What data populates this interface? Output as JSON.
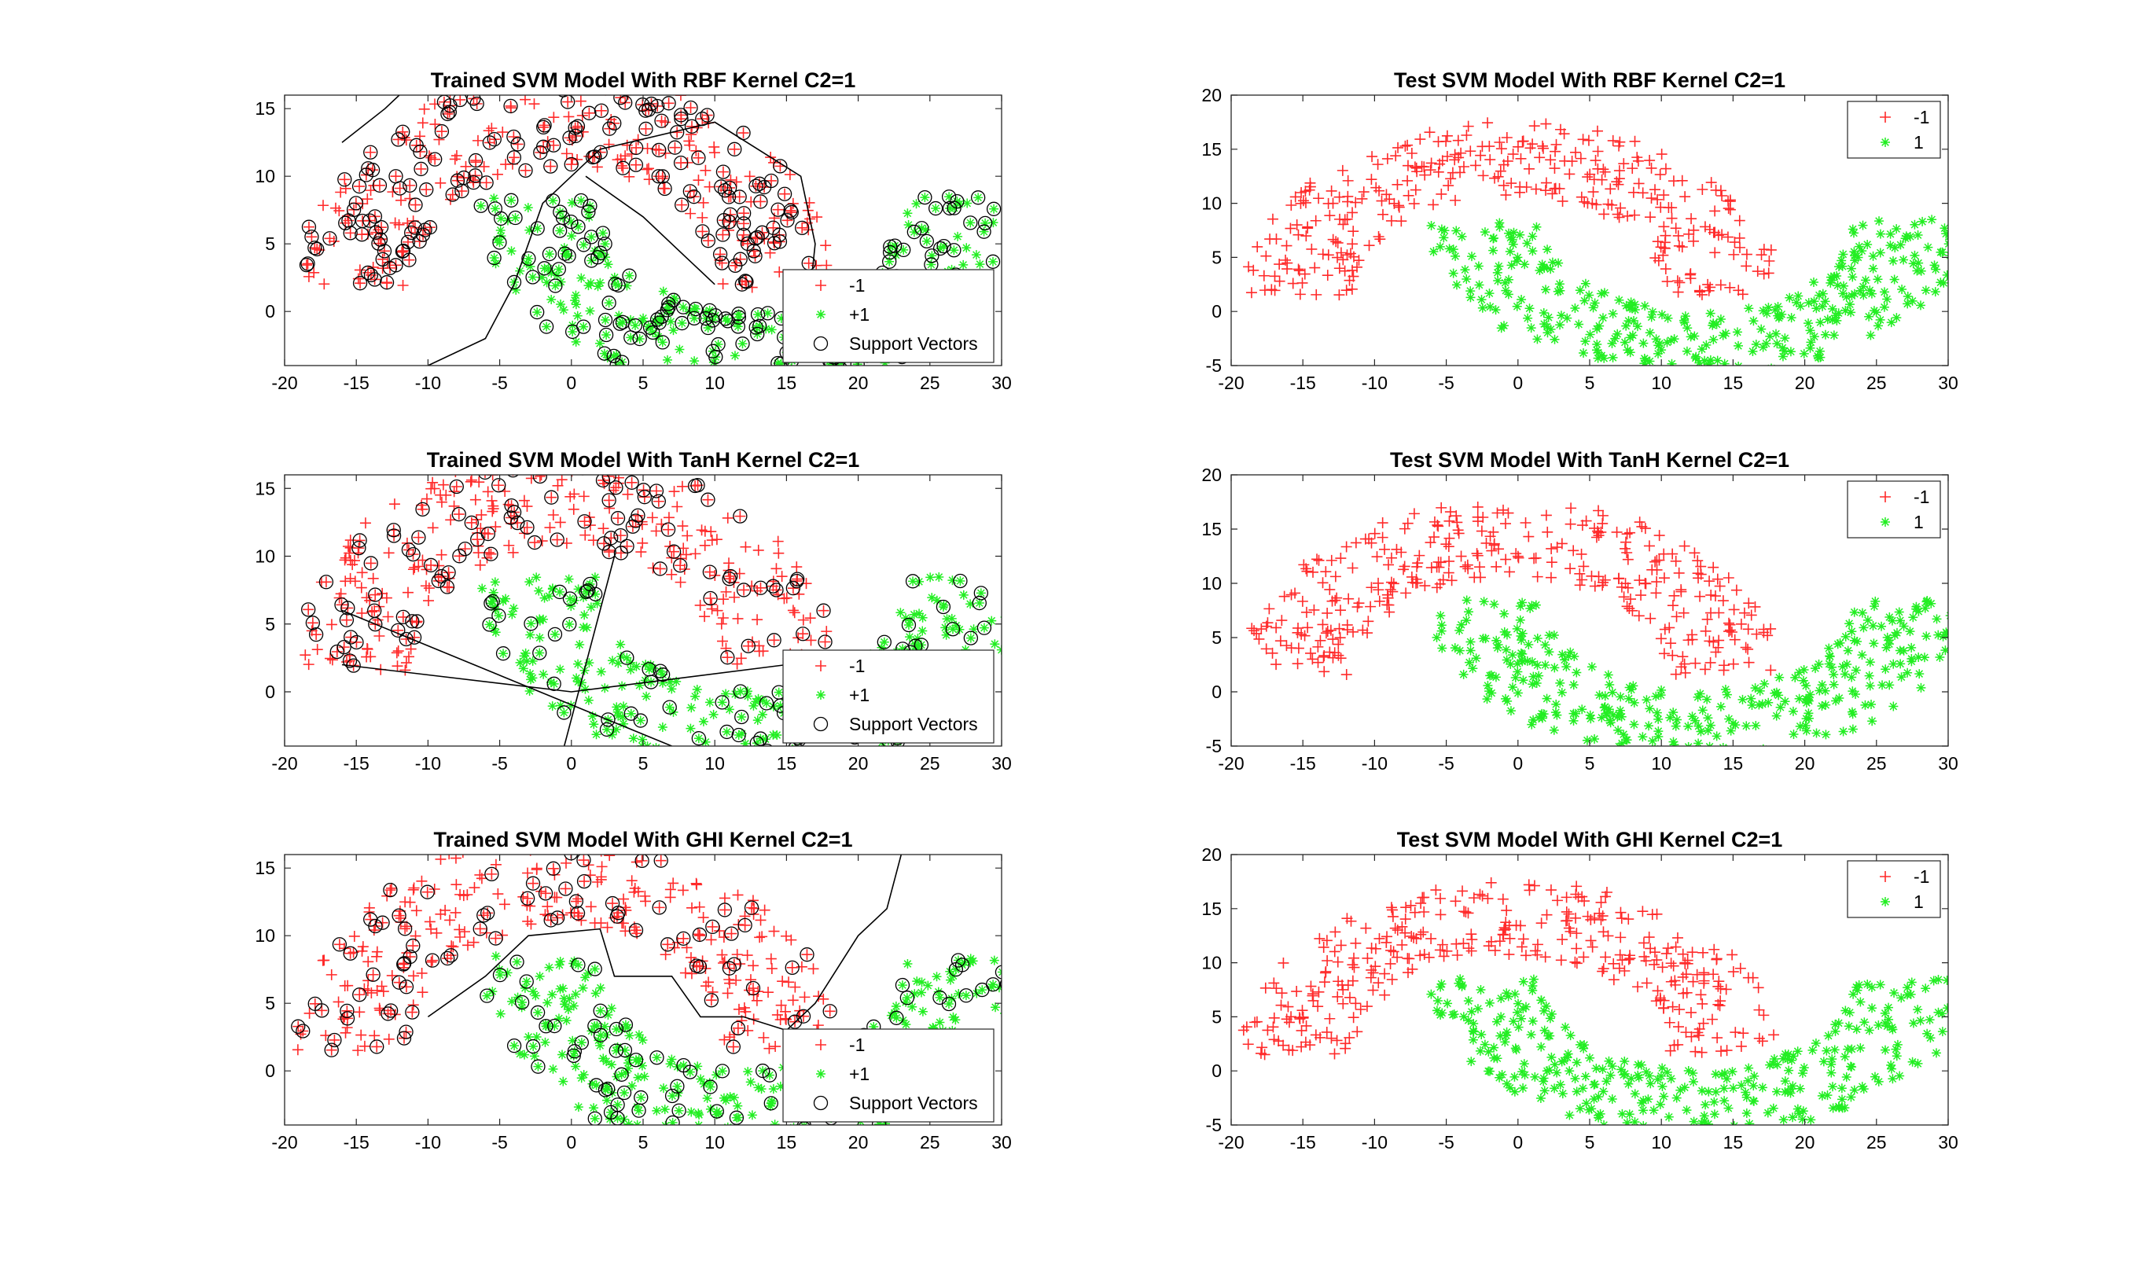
{
  "colors": {
    "neg": "#ff2a2a",
    "pos": "#22ee22",
    "sv": "#000000",
    "boundary": "#000000"
  },
  "chart_data": [
    {
      "type": "scatter",
      "title": "Trained SVM Model With RBF Kernel C2=1",
      "xlim": [
        -20,
        30
      ],
      "ylim": [
        -4,
        16
      ],
      "xticks": [
        "-20",
        "-15",
        "-10",
        "-5",
        "0",
        "5",
        "10",
        "15",
        "20",
        "25",
        "30"
      ],
      "yticks": [
        "0",
        "5",
        "10",
        "15"
      ],
      "legend": [
        "-1",
        "+1",
        "Support Vectors"
      ],
      "legend_position": "bottom-right",
      "series": [
        {
          "name": "-1",
          "marker": "plus",
          "region": "upper_moon"
        },
        {
          "name": "+1",
          "marker": "asterisk",
          "region": "lower_moon"
        },
        {
          "name": "Support Vectors",
          "marker": "circle",
          "region": "mixed"
        }
      ],
      "decision_boundary": [
        [
          -16,
          12.5
        ],
        [
          -13,
          15
        ],
        [
          -12,
          16
        ]
      ],
      "decision_boundary_2": [
        [
          -10,
          -4
        ],
        [
          -6,
          -2
        ],
        [
          -4,
          2
        ],
        [
          -2,
          8
        ],
        [
          2,
          12
        ],
        [
          10,
          14
        ],
        [
          16,
          10
        ],
        [
          17,
          5
        ],
        [
          16.5,
          0
        ]
      ],
      "decision_boundary_3": [
        [
          1,
          10
        ],
        [
          5,
          7
        ],
        [
          8,
          4
        ],
        [
          10,
          2
        ]
      ]
    },
    {
      "type": "scatter",
      "title": "Test SVM Model With RBF Kernel C2=1",
      "xlim": [
        -20,
        30
      ],
      "ylim": [
        -5,
        20
      ],
      "xticks": [
        "-20",
        "-15",
        "-10",
        "-5",
        "0",
        "5",
        "10",
        "15",
        "20",
        "25",
        "30"
      ],
      "yticks": [
        "-5",
        "0",
        "5",
        "10",
        "15",
        "20"
      ],
      "legend": [
        "-1",
        "1"
      ],
      "legend_position": "top-right",
      "series": [
        {
          "name": "-1",
          "marker": "plus",
          "region": "upper_moon"
        },
        {
          "name": "1",
          "marker": "asterisk",
          "region": "lower_moon"
        }
      ]
    },
    {
      "type": "scatter",
      "title": "Trained SVM Model With TanH Kernel C2=1",
      "xlim": [
        -20,
        30
      ],
      "ylim": [
        -4,
        16
      ],
      "xticks": [
        "-20",
        "-15",
        "-10",
        "-5",
        "0",
        "5",
        "10",
        "15",
        "20",
        "25",
        "30"
      ],
      "yticks": [
        "0",
        "5",
        "10",
        "15"
      ],
      "legend": [
        "-1",
        "+1",
        "Support Vectors"
      ],
      "legend_position": "bottom-right",
      "series": [
        {
          "name": "-1",
          "marker": "plus",
          "region": "upper_moon"
        },
        {
          "name": "+1",
          "marker": "asterisk",
          "region": "lower_moon"
        },
        {
          "name": "Support Vectors",
          "marker": "circle",
          "region": "mixed"
        }
      ],
      "decision_boundary": [
        [
          -16,
          6
        ],
        [
          7,
          -4
        ]
      ],
      "decision_boundary_2": [
        [
          -16,
          2
        ],
        [
          0,
          0
        ],
        [
          15,
          2
        ],
        [
          29,
          3
        ]
      ],
      "decision_boundary_3": [
        [
          -0.5,
          -4
        ],
        [
          3,
          10
        ]
      ]
    },
    {
      "type": "scatter",
      "title": "Test SVM Model With TanH Kernel C2=1",
      "xlim": [
        -20,
        30
      ],
      "ylim": [
        -5,
        20
      ],
      "xticks": [
        "-20",
        "-15",
        "-10",
        "-5",
        "0",
        "5",
        "10",
        "15",
        "20",
        "25",
        "30"
      ],
      "yticks": [
        "-5",
        "0",
        "5",
        "10",
        "15",
        "20"
      ],
      "legend": [
        "-1",
        "1"
      ],
      "legend_position": "top-right",
      "series": [
        {
          "name": "-1",
          "marker": "plus",
          "region": "mixed"
        },
        {
          "name": "1",
          "marker": "asterisk",
          "region": "mixed"
        }
      ]
    },
    {
      "type": "scatter",
      "title": "Trained SVM Model With GHI Kernel C2=1",
      "xlim": [
        -20,
        30
      ],
      "ylim": [
        -4,
        16
      ],
      "xticks": [
        "-20",
        "-15",
        "-10",
        "-5",
        "0",
        "5",
        "10",
        "15",
        "20",
        "25",
        "30"
      ],
      "yticks": [
        "0",
        "5",
        "10",
        "15"
      ],
      "legend": [
        "-1",
        "+1",
        "Support Vectors"
      ],
      "legend_position": "bottom-right",
      "series": [
        {
          "name": "-1",
          "marker": "plus",
          "region": "upper_moon"
        },
        {
          "name": "+1",
          "marker": "asterisk",
          "region": "lower_moon"
        },
        {
          "name": "Support Vectors",
          "marker": "circle",
          "region": "mixed"
        }
      ],
      "decision_boundary": [
        [
          -10,
          4
        ],
        [
          -6,
          7
        ],
        [
          -3,
          10
        ],
        [
          2,
          10.5
        ],
        [
          3,
          7
        ],
        [
          7,
          7
        ],
        [
          9,
          4
        ],
        [
          12,
          4
        ],
        [
          15,
          3
        ],
        [
          17,
          5
        ],
        [
          20,
          10
        ],
        [
          22,
          12
        ],
        [
          23,
          16
        ]
      ]
    },
    {
      "type": "scatter",
      "title": "Test SVM Model With GHI Kernel C2=1",
      "xlim": [
        -20,
        30
      ],
      "ylim": [
        -5,
        20
      ],
      "xticks": [
        "-20",
        "-15",
        "-10",
        "-5",
        "0",
        "5",
        "10",
        "15",
        "20",
        "25",
        "30"
      ],
      "yticks": [
        "-5",
        "0",
        "5",
        "10",
        "15",
        "20"
      ],
      "legend": [
        "-1",
        "1"
      ],
      "legend_position": "top-right",
      "series": [
        {
          "name": "-1",
          "marker": "plus",
          "region": "upper_moon"
        },
        {
          "name": "1",
          "marker": "asterisk",
          "region": "lower_moon"
        }
      ]
    }
  ]
}
